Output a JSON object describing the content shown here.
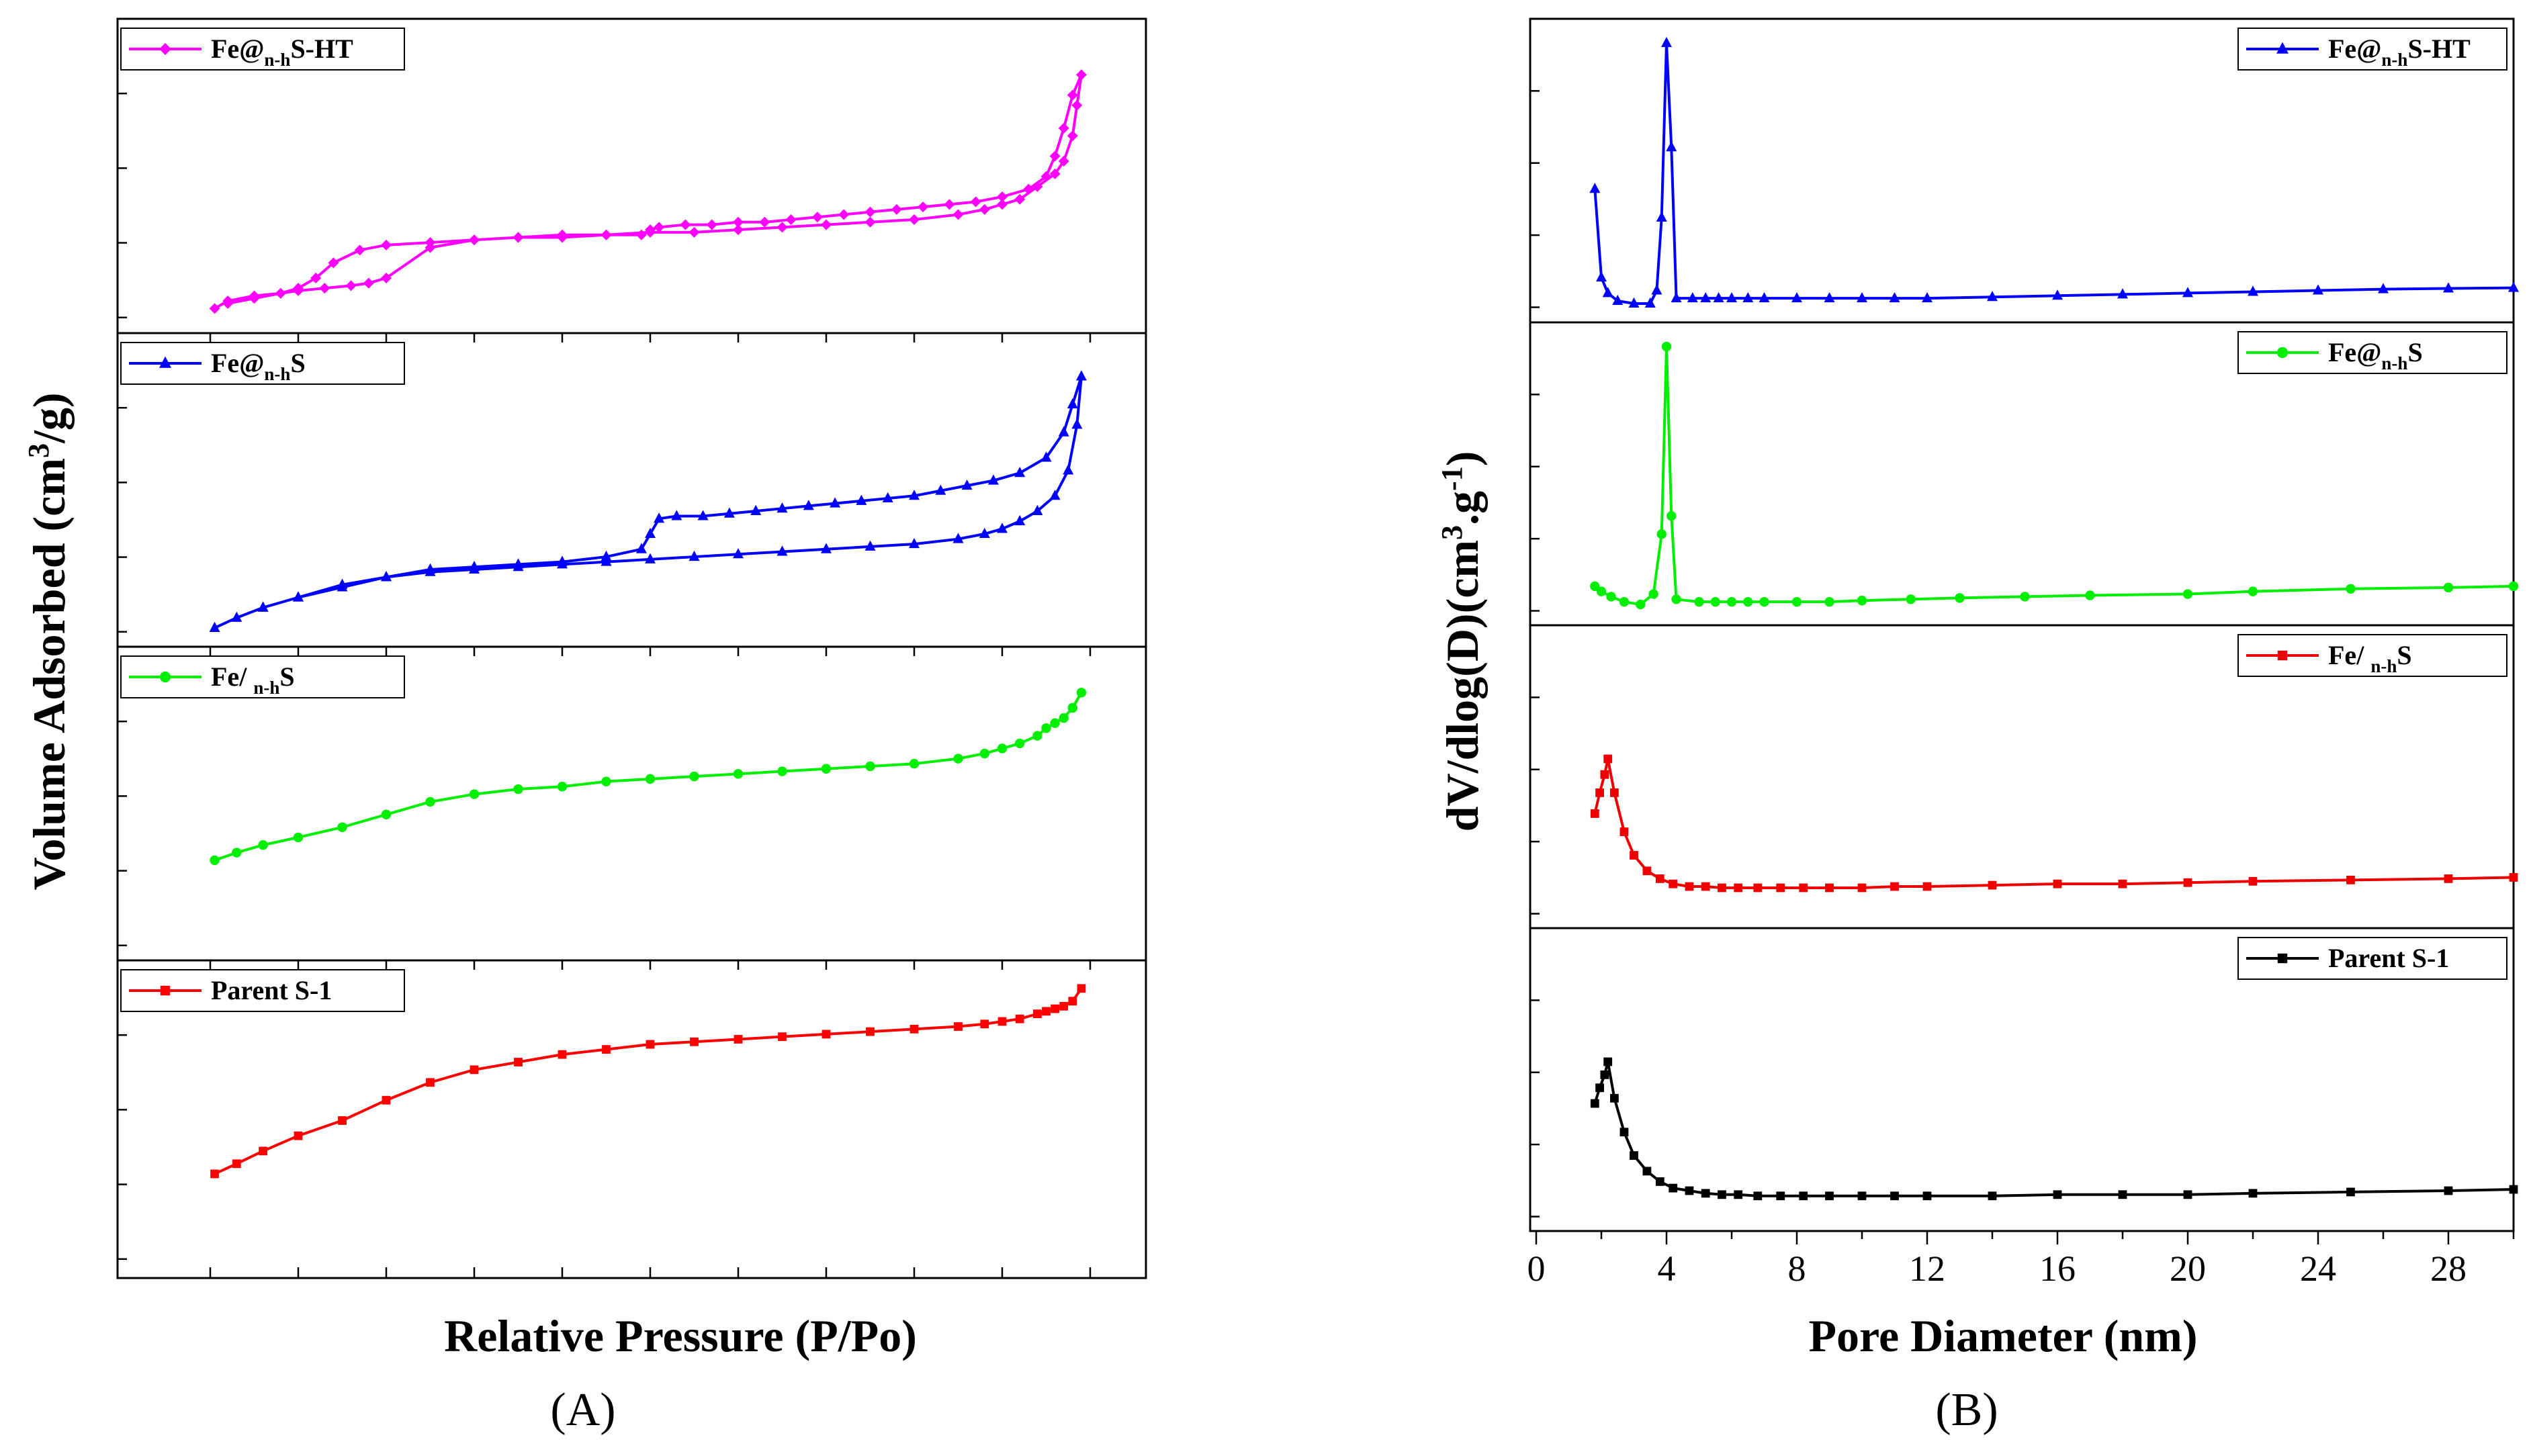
{
  "figure": {
    "panel_labels": [
      "(A)",
      "(B)"
    ]
  },
  "chart_data": [
    {
      "type": "line",
      "id": "A",
      "title": "",
      "xlabel": "Relative Pressure (P/Po)",
      "ylabel": "Volume Adsorbed (cm³/g)",
      "ylabel_parts": {
        "pre": "Volume Adsorbed (cm",
        "sup": "3",
        "post": "/g)"
      },
      "xlim": [
        0,
        1.05
      ],
      "ylim": [
        0,
        1
      ],
      "xtick_values": [
        0,
        0.1,
        0.2,
        0.3,
        0.4,
        0.5,
        0.6,
        0.7,
        0.8,
        0.9,
        1.0
      ],
      "xtick_labels_visible": false,
      "ytick_labels_visible": false,
      "stack_order_top_to_bottom": [
        "Fe@n-hS-HT",
        "Fe@n-hS",
        "Fe/n-hS",
        "Parent S-1"
      ],
      "series": [
        {
          "name": "Fe@n-hS-HT",
          "legend": {
            "pre": "Fe@",
            "sub": "n-h",
            "post": "S-HT"
          },
          "color": "#FF00FF",
          "marker": "diamond",
          "x": [
            0.005,
            0.02,
            0.05,
            0.08,
            0.1,
            0.13,
            0.16,
            0.18,
            0.2,
            0.25,
            0.3,
            0.35,
            0.4,
            0.45,
            0.5,
            0.55,
            0.6,
            0.65,
            0.7,
            0.75,
            0.8,
            0.85,
            0.88,
            0.9,
            0.92,
            0.94,
            0.96,
            0.97,
            0.98,
            0.985,
            0.99,
            0.98,
            0.97,
            0.96,
            0.95,
            0.93,
            0.9,
            0.87,
            0.84,
            0.81,
            0.78,
            0.75,
            0.72,
            0.69,
            0.66,
            0.63,
            0.6,
            0.57,
            0.54,
            0.51,
            0.5,
            0.49,
            0.45,
            0.4,
            0.35,
            0.3,
            0.25,
            0.2,
            0.17,
            0.14,
            0.12,
            0.1,
            0.08,
            0.05,
            0.02
          ],
          "y": [
            0.02,
            0.05,
            0.07,
            0.08,
            0.09,
            0.1,
            0.11,
            0.12,
            0.14,
            0.26,
            0.29,
            0.3,
            0.31,
            0.31,
            0.32,
            0.32,
            0.33,
            0.34,
            0.35,
            0.36,
            0.37,
            0.39,
            0.41,
            0.43,
            0.45,
            0.5,
            0.55,
            0.6,
            0.7,
            0.82,
            0.94,
            0.86,
            0.73,
            0.62,
            0.54,
            0.49,
            0.46,
            0.44,
            0.43,
            0.42,
            0.41,
            0.4,
            0.39,
            0.38,
            0.37,
            0.36,
            0.36,
            0.35,
            0.35,
            0.34,
            0.33,
            0.31,
            0.31,
            0.3,
            0.3,
            0.29,
            0.28,
            0.27,
            0.25,
            0.2,
            0.14,
            0.1,
            0.08,
            0.06,
            0.04
          ]
        },
        {
          "name": "Fe@n-hS",
          "legend": {
            "pre": "Fe@",
            "sub": "n-h",
            "post": "S"
          },
          "color": "#0000FF",
          "marker": "triangle",
          "x": [
            0.005,
            0.03,
            0.06,
            0.1,
            0.15,
            0.2,
            0.25,
            0.3,
            0.35,
            0.4,
            0.45,
            0.5,
            0.55,
            0.6,
            0.65,
            0.7,
            0.75,
            0.8,
            0.85,
            0.88,
            0.9,
            0.92,
            0.94,
            0.96,
            0.975,
            0.985,
            0.99,
            0.98,
            0.97,
            0.95,
            0.92,
            0.89,
            0.86,
            0.83,
            0.8,
            0.77,
            0.74,
            0.71,
            0.68,
            0.65,
            0.62,
            0.59,
            0.56,
            0.53,
            0.51,
            0.5,
            0.49,
            0.45,
            0.4,
            0.35,
            0.3,
            0.25,
            0.2,
            0.15,
            0.1,
            0.06
          ],
          "y": [
            0.0,
            0.04,
            0.08,
            0.12,
            0.16,
            0.2,
            0.22,
            0.23,
            0.24,
            0.25,
            0.26,
            0.27,
            0.28,
            0.29,
            0.3,
            0.31,
            0.32,
            0.33,
            0.35,
            0.37,
            0.39,
            0.42,
            0.46,
            0.52,
            0.62,
            0.8,
            0.99,
            0.88,
            0.77,
            0.67,
            0.61,
            0.58,
            0.56,
            0.54,
            0.52,
            0.51,
            0.5,
            0.49,
            0.48,
            0.47,
            0.46,
            0.45,
            0.44,
            0.44,
            0.43,
            0.37,
            0.31,
            0.28,
            0.26,
            0.25,
            0.24,
            0.23,
            0.2,
            0.17,
            0.12,
            0.08
          ]
        },
        {
          "name": "Fe/n-hS",
          "legend": {
            "pre": "Fe/ ",
            "sub": "n-h",
            "post": "S"
          },
          "color": "#00EE00",
          "marker": "circle",
          "x": [
            0.005,
            0.03,
            0.06,
            0.1,
            0.15,
            0.2,
            0.25,
            0.3,
            0.35,
            0.4,
            0.45,
            0.5,
            0.55,
            0.6,
            0.65,
            0.7,
            0.75,
            0.8,
            0.85,
            0.88,
            0.9,
            0.92,
            0.94,
            0.95,
            0.96,
            0.97,
            0.98,
            0.99
          ],
          "y": [
            0.32,
            0.35,
            0.38,
            0.41,
            0.45,
            0.5,
            0.55,
            0.58,
            0.6,
            0.61,
            0.63,
            0.64,
            0.65,
            0.66,
            0.67,
            0.68,
            0.69,
            0.7,
            0.72,
            0.74,
            0.76,
            0.78,
            0.81,
            0.84,
            0.86,
            0.88,
            0.92,
            0.98
          ]
        },
        {
          "name": "Parent S-1",
          "legend": {
            "pre": "Parent S-1",
            "sub": "",
            "post": ""
          },
          "color": "#FF0000",
          "marker": "square",
          "x": [
            0.005,
            0.03,
            0.06,
            0.1,
            0.15,
            0.2,
            0.25,
            0.3,
            0.35,
            0.4,
            0.45,
            0.5,
            0.55,
            0.6,
            0.65,
            0.7,
            0.75,
            0.8,
            0.85,
            0.88,
            0.9,
            0.92,
            0.94,
            0.95,
            0.96,
            0.97,
            0.98,
            0.99
          ],
          "y": [
            0.32,
            0.36,
            0.41,
            0.47,
            0.53,
            0.61,
            0.68,
            0.73,
            0.76,
            0.79,
            0.81,
            0.83,
            0.84,
            0.85,
            0.86,
            0.87,
            0.88,
            0.89,
            0.9,
            0.91,
            0.92,
            0.93,
            0.95,
            0.96,
            0.97,
            0.98,
            1.0,
            1.05
          ]
        }
      ]
    },
    {
      "type": "line",
      "id": "B",
      "title": "",
      "xlabel": "Pore Diameter (nm)",
      "ylabel": "dV/dlog(D)(cm³.g⁻¹)",
      "ylabel_parts": {
        "pre": "dV/dlog(D)(cm",
        "sup1": "3",
        "mid": ".g",
        "sup2": "-1",
        "post": ")"
      },
      "xlim": [
        0,
        30
      ],
      "ylim": [
        0,
        1
      ],
      "xticks": [
        0,
        4,
        8,
        12,
        16,
        20,
        24,
        28
      ],
      "xtick_labels": [
        "0",
        "4",
        "8",
        "12",
        "16",
        "20",
        "24",
        "28"
      ],
      "ytick_labels_visible": false,
      "stack_order_top_to_bottom": [
        "Fe@n-hS-HT",
        "Fe@n-hS",
        "Fe/n-hS",
        "Parent S-1"
      ],
      "series": [
        {
          "name": "Fe@n-hS-HT",
          "legend": {
            "pre": "Fe@",
            "sub": "n-h",
            "post": "S-HT"
          },
          "color": "#0000FF",
          "marker": "triangle",
          "x": [
            1.8,
            2.0,
            2.2,
            2.5,
            3.0,
            3.5,
            3.7,
            3.85,
            4.0,
            4.15,
            4.3,
            4.8,
            5.2,
            5.6,
            6.0,
            6.5,
            7.0,
            8.0,
            9.0,
            10.0,
            11.0,
            12.0,
            14.0,
            16.0,
            18.0,
            20.0,
            22.0,
            24.0,
            26.0,
            28.0,
            30.0
          ],
          "y": [
            0.44,
            0.1,
            0.04,
            0.01,
            0.0,
            0.0,
            0.05,
            0.33,
            1.0,
            0.6,
            0.02,
            0.02,
            0.02,
            0.02,
            0.02,
            0.02,
            0.02,
            0.02,
            0.02,
            0.02,
            0.02,
            0.02,
            0.025,
            0.03,
            0.035,
            0.04,
            0.045,
            0.05,
            0.055,
            0.058,
            0.06
          ]
        },
        {
          "name": "Fe@n-hS",
          "legend": {
            "pre": "Fe@",
            "sub": "n-h",
            "post": "S"
          },
          "color": "#00EE00",
          "marker": "circle",
          "x": [
            1.8,
            2.0,
            2.3,
            2.7,
            3.2,
            3.6,
            3.85,
            4.0,
            4.15,
            4.3,
            5.0,
            5.5,
            6.0,
            6.5,
            7.0,
            8.0,
            9.0,
            10.0,
            11.5,
            13.0,
            15.0,
            17.0,
            20.0,
            22.0,
            25.0,
            28.0,
            30.0
          ],
          "y": [
            0.08,
            0.06,
            0.04,
            0.02,
            0.01,
            0.05,
            0.28,
            1.0,
            0.35,
            0.03,
            0.02,
            0.02,
            0.02,
            0.02,
            0.02,
            0.02,
            0.02,
            0.025,
            0.03,
            0.035,
            0.04,
            0.045,
            0.05,
            0.06,
            0.07,
            0.075,
            0.08
          ]
        },
        {
          "name": "Fe/n-hS",
          "legend": {
            "pre": "Fe/ ",
            "sub": "n-h",
            "post": "S"
          },
          "color": "#EE0000",
          "marker": "square",
          "x": [
            1.8,
            1.95,
            2.1,
            2.2,
            2.4,
            2.7,
            3.0,
            3.4,
            3.8,
            4.2,
            4.7,
            5.2,
            5.7,
            6.2,
            6.8,
            7.5,
            8.2,
            9.0,
            10.0,
            11.0,
            12.0,
            14.0,
            16.0,
            18.0,
            20.0,
            22.0,
            25.0,
            28.0,
            30.0
          ],
          "y": [
            0.37,
            0.45,
            0.52,
            0.58,
            0.45,
            0.3,
            0.21,
            0.15,
            0.12,
            0.1,
            0.09,
            0.09,
            0.085,
            0.085,
            0.085,
            0.085,
            0.085,
            0.085,
            0.085,
            0.09,
            0.09,
            0.095,
            0.1,
            0.1,
            0.105,
            0.11,
            0.115,
            0.12,
            0.125
          ]
        },
        {
          "name": "Parent S-1",
          "legend": {
            "pre": "Parent S-1",
            "sub": "",
            "post": ""
          },
          "color": "#000000",
          "marker": "square",
          "x": [
            1.8,
            1.95,
            2.1,
            2.2,
            2.4,
            2.7,
            3.0,
            3.4,
            3.8,
            4.2,
            4.7,
            5.2,
            5.7,
            6.2,
            6.8,
            7.5,
            8.2,
            9.0,
            10.0,
            11.0,
            12.0,
            14.0,
            16.0,
            18.0,
            20.0,
            22.0,
            25.0,
            28.0,
            30.0
          ],
          "y": [
            0.42,
            0.48,
            0.53,
            0.58,
            0.44,
            0.31,
            0.22,
            0.16,
            0.12,
            0.095,
            0.085,
            0.075,
            0.07,
            0.07,
            0.065,
            0.065,
            0.065,
            0.065,
            0.065,
            0.065,
            0.065,
            0.065,
            0.07,
            0.07,
            0.07,
            0.075,
            0.08,
            0.085,
            0.09
          ]
        }
      ]
    }
  ]
}
